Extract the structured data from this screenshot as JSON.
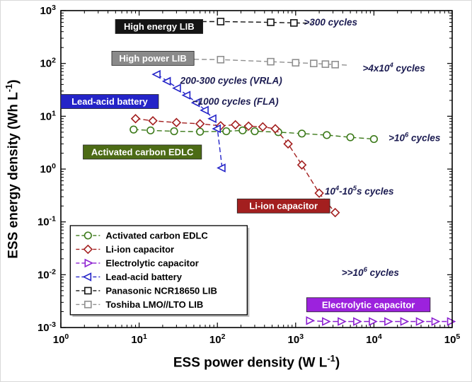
{
  "chart_data": {
    "type": "scatter",
    "title": "",
    "xscale": "log",
    "yscale": "log",
    "xlim": [
      1,
      100000
    ],
    "ylim": [
      0.001,
      1000
    ],
    "x_tick_exponents": [
      0,
      1,
      2,
      3,
      4,
      5
    ],
    "y_tick_exponents": [
      -3,
      -2,
      -1,
      0,
      1,
      2,
      3
    ],
    "xlabel": "ESS power density (W L^-1)",
    "ylabel": "ESS energy density (Wh L^-1)",
    "xlabel_parts": {
      "pre": "ESS power density (W L",
      "sup": "-1",
      "post": ")"
    },
    "ylabel_parts": {
      "pre": "ESS energy density (Wh L",
      "sup": "-1",
      "post": ")"
    },
    "annotation_color": "#1c1c52",
    "grid": false,
    "legend_position": "lower-left",
    "series": [
      {
        "name": "Activated carbon EDLC",
        "marker": "circle",
        "color": "#3c7a1a",
        "points": [
          [
            8.5,
            5.6
          ],
          [
            14,
            5.4
          ],
          [
            28,
            5.2
          ],
          [
            60,
            5.1
          ],
          [
            130,
            5.2
          ],
          [
            210,
            5.4
          ],
          [
            300,
            5.2
          ],
          [
            600,
            5.0
          ],
          [
            1200,
            4.7
          ],
          [
            2500,
            4.4
          ],
          [
            5000,
            4.0
          ],
          [
            10000,
            3.7
          ]
        ]
      },
      {
        "name": "Li-ion capacitor",
        "marker": "diamond",
        "color": "#a31f1f",
        "points": [
          [
            9,
            9.0
          ],
          [
            15,
            8.2
          ],
          [
            30,
            7.6
          ],
          [
            60,
            7.2
          ],
          [
            110,
            6.6
          ],
          [
            170,
            6.9
          ],
          [
            250,
            6.5
          ],
          [
            380,
            6.3
          ],
          [
            550,
            5.8
          ],
          [
            800,
            3.0
          ],
          [
            1200,
            1.2
          ],
          [
            2000,
            0.35
          ],
          [
            3200,
            0.15
          ]
        ]
      },
      {
        "name": "Electrolytic capacitor",
        "marker": "tri-right",
        "color": "#8c1fd1",
        "points": [
          [
            1500,
            0.00135
          ],
          [
            2400,
            0.0013
          ],
          [
            3800,
            0.0013
          ],
          [
            6000,
            0.0013
          ],
          [
            9500,
            0.0013
          ],
          [
            15000,
            0.0013
          ],
          [
            24000,
            0.0013
          ],
          [
            38000,
            0.0013
          ],
          [
            60000,
            0.0013
          ],
          [
            95000,
            0.0013
          ]
        ]
      },
      {
        "name": "Lead-acid battery",
        "marker": "tri-left",
        "color": "#2424c8",
        "points": [
          [
            17,
            62
          ],
          [
            23,
            46
          ],
          [
            31,
            34
          ],
          [
            41,
            25
          ],
          [
            54,
            18
          ],
          [
            70,
            13
          ],
          [
            88,
            9
          ],
          [
            100,
            5.8
          ],
          [
            115,
            1.05
          ]
        ]
      },
      {
        "name": "Panasonic NCR18650 LIB",
        "marker": "square",
        "color": "#141414",
        "lead": [
          20,
          620
        ],
        "points": [
          [
            110,
            620
          ],
          [
            480,
            600
          ],
          [
            950,
            585
          ]
        ],
        "trail": [
          1600,
          578
        ]
      },
      {
        "name": "Toshiba LMO//LTO LIB",
        "marker": "square",
        "color": "#8f8f8f",
        "lead": [
          16,
          122
        ],
        "points": [
          [
            110,
            118
          ],
          [
            480,
            108
          ],
          [
            1000,
            103
          ],
          [
            1700,
            100
          ],
          [
            2400,
            97
          ],
          [
            3200,
            95
          ]
        ],
        "trail": [
          4500,
          93
        ]
      }
    ],
    "labels": [
      {
        "text": "High energy LIB",
        "bg": "#141414",
        "x": 18,
        "y": 500
      },
      {
        "text": "High power LIB",
        "bg": "#8a8a8a",
        "x": 15,
        "y": 125
      },
      {
        "text": "Lead-acid battery",
        "bg": "#2424c8",
        "x": 4.2,
        "y": 19
      },
      {
        "text": "Activated carbon EDLC",
        "bg": "#4c6b15",
        "x": 11,
        "y": 2.1
      },
      {
        "text": "Li-ion capacitor",
        "bg": "#a31f1f",
        "x": 700,
        "y": 0.2
      },
      {
        "text": "Electrolytic capacitor",
        "bg": "#9c22dd",
        "x": 8500,
        "y": 0.0027
      }
    ],
    "annotations": [
      {
        "text": ">300 cycles",
        "x": 2800,
        "y": 520
      },
      {
        "text": ">4x10^4 cycles",
        "x": 18000,
        "y": 70
      },
      {
        "text": "200-300 cycles (VRLA)",
        "x": 150,
        "y": 41
      },
      {
        "text": "~1000 cycles (FLA)",
        "x": 170,
        "y": 16.5
      },
      {
        "text": ">10^6 cycles",
        "x": 33000,
        "y": 3.4
      },
      {
        "text": "10^4-10^5s cycles",
        "x": 6500,
        "y": 0.33
      },
      {
        "text": ">>10^6 cycles",
        "x": 9000,
        "y": 0.0095
      }
    ],
    "legend": {
      "x": 1.32,
      "y": 0.085
    }
  }
}
